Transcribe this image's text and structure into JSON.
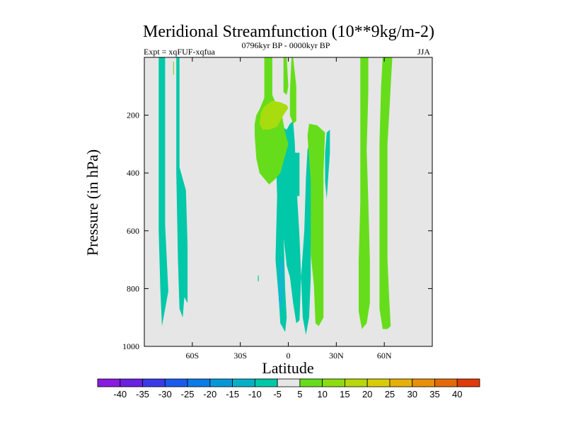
{
  "chart_data": {
    "type": "heatmap",
    "title": "Meridional Streamfunction (10**9kg/m-2)",
    "subtitle_left": "Expt = xqFUF-xqfua",
    "subtitle_center": "0796kyr BP - 0000kyr BP",
    "subtitle_right": "JJA",
    "xlabel": "Latitude",
    "ylabel": "Pressure (in hPa)",
    "xlim": [
      -90,
      90
    ],
    "ylim": [
      1000,
      0
    ],
    "x_ticks": [
      {
        "value": -60,
        "label": "60S"
      },
      {
        "value": -30,
        "label": "30S"
      },
      {
        "value": 0,
        "label": "0"
      },
      {
        "value": 30,
        "label": "30N"
      },
      {
        "value": 60,
        "label": "60N"
      }
    ],
    "y_ticks": [
      {
        "value": 200,
        "label": "200"
      },
      {
        "value": 400,
        "label": "400"
      },
      {
        "value": 600,
        "label": "600"
      },
      {
        "value": 800,
        "label": "800"
      },
      {
        "value": 1000,
        "label": "1000"
      }
    ],
    "background_color": "#e6e6e6",
    "regions": [
      {
        "level": -7.5,
        "color": "#00c8a8",
        "points": [
          [
            -81,
            0
          ],
          [
            -77,
            0
          ],
          [
            -77,
            580
          ],
          [
            -75,
            810
          ],
          [
            -77,
            870
          ],
          [
            -79,
            930
          ],
          [
            -80,
            800
          ],
          [
            -81,
            600
          ]
        ]
      },
      {
        "level": -7.5,
        "color": "#00c8a8",
        "points": [
          [
            -70,
            0
          ],
          [
            -68,
            0
          ],
          [
            -68,
            380
          ],
          [
            -64,
            460
          ],
          [
            -63,
            650
          ],
          [
            -63,
            850
          ],
          [
            -65,
            830
          ],
          [
            -66,
            900
          ],
          [
            -68,
            870
          ],
          [
            -69,
            700
          ],
          [
            -70,
            400
          ]
        ]
      },
      {
        "level": -7.5,
        "color": "#00c8a8",
        "points": [
          [
            -8,
            290
          ],
          [
            -6,
            380
          ],
          [
            -3,
            620
          ],
          [
            -1,
            720
          ],
          [
            1,
            760
          ],
          [
            3,
            850
          ],
          [
            5,
            920
          ],
          [
            7,
            910
          ],
          [
            8,
            760
          ],
          [
            7,
            620
          ],
          [
            5,
            430
          ],
          [
            4,
            290
          ],
          [
            3,
            220
          ],
          [
            1,
            230
          ],
          [
            -1,
            250
          ],
          [
            -4,
            240
          ],
          [
            -6,
            260
          ]
        ]
      },
      {
        "level": -7.5,
        "color": "#00c8a8",
        "points": [
          [
            -8,
            300
          ],
          [
            -7,
            480
          ],
          [
            -8,
            700
          ],
          [
            -6,
            830
          ],
          [
            -5,
            920
          ],
          [
            -2,
            950
          ],
          [
            -1,
            900
          ],
          [
            -2,
            800
          ],
          [
            -3,
            600
          ],
          [
            -5,
            400
          ],
          [
            -6,
            310
          ]
        ]
      },
      {
        "level": -12.5,
        "color": "#10b8d0",
        "points": [
          [
            -5,
            680
          ],
          [
            -3,
            720
          ],
          [
            -3,
            800
          ],
          [
            -4,
            880
          ],
          [
            -6,
            840
          ],
          [
            -6,
            740
          ]
        ]
      },
      {
        "level": -7.5,
        "color": "#00c8a8",
        "points": [
          [
            4,
            330
          ],
          [
            7,
            330
          ],
          [
            7,
            480
          ],
          [
            5,
            480
          ]
        ]
      },
      {
        "level": -7.5,
        "color": "#00c8a8",
        "points": [
          [
            12,
            320
          ],
          [
            14,
            280
          ],
          [
            15,
            410
          ],
          [
            14,
            670
          ],
          [
            14,
            760
          ],
          [
            13,
            900
          ],
          [
            11,
            960
          ],
          [
            9,
            900
          ],
          [
            8,
            760
          ],
          [
            10,
            600
          ],
          [
            11,
            420
          ]
        ]
      },
      {
        "level": -7.5,
        "color": "#00c8a8",
        "points": [
          [
            24,
            260
          ],
          [
            26,
            250
          ],
          [
            26,
            330
          ],
          [
            25,
            410
          ],
          [
            24,
            490
          ],
          [
            23,
            430
          ],
          [
            23,
            330
          ]
        ]
      },
      {
        "level": 7.5,
        "color": "#66dd1a",
        "points": [
          [
            -15,
            0
          ],
          [
            -10,
            0
          ],
          [
            -10,
            130
          ],
          [
            -7,
            170
          ],
          [
            -4,
            200
          ],
          [
            -2,
            260
          ],
          [
            0,
            300
          ],
          [
            -2,
            340
          ],
          [
            -5,
            400
          ],
          [
            -8,
            420
          ],
          [
            -10,
            430
          ],
          [
            -12,
            440
          ],
          [
            -15,
            420
          ],
          [
            -18,
            400
          ],
          [
            -20,
            350
          ],
          [
            -21,
            270
          ],
          [
            -21,
            230
          ],
          [
            -20,
            200
          ],
          [
            -18,
            180
          ],
          [
            -15,
            140
          ]
        ]
      },
      {
        "level": 12.5,
        "color": "#a8dc0e",
        "points": [
          [
            -15,
            170
          ],
          [
            -10,
            150
          ],
          [
            -5,
            155
          ],
          [
            -1,
            165
          ],
          [
            0,
            175
          ],
          [
            -3,
            200
          ],
          [
            -7,
            240
          ],
          [
            -12,
            250
          ],
          [
            -16,
            250
          ],
          [
            -18,
            230
          ],
          [
            -17,
            190
          ]
        ]
      },
      {
        "level": 7.5,
        "color": "#66dd1a",
        "points": [
          [
            -3,
            0
          ],
          [
            -1,
            0
          ],
          [
            0,
            100
          ],
          [
            -1,
            130
          ],
          [
            -3,
            120
          ],
          [
            -3,
            60
          ]
        ]
      },
      {
        "level": 7.5,
        "color": "#66dd1a",
        "points": [
          [
            2,
            0
          ],
          [
            3,
            0
          ],
          [
            5,
            100
          ],
          [
            5,
            170
          ],
          [
            5,
            220
          ],
          [
            3,
            230
          ],
          [
            1,
            200
          ],
          [
            1,
            120
          ]
        ]
      },
      {
        "level": 7.5,
        "color": "#66dd1a",
        "points": [
          [
            13,
            230
          ],
          [
            18,
            235
          ],
          [
            23,
            260
          ],
          [
            22,
            400
          ],
          [
            22,
            580
          ],
          [
            22,
            760
          ],
          [
            22,
            900
          ],
          [
            19,
            930
          ],
          [
            17,
            920
          ],
          [
            16,
            790
          ],
          [
            14,
            680
          ],
          [
            14,
            430
          ],
          [
            12,
            270
          ]
        ]
      },
      {
        "level": 7.5,
        "color": "#66dd1a",
        "points": [
          [
            45,
            0
          ],
          [
            50,
            0
          ],
          [
            50,
            120
          ],
          [
            49,
            320
          ],
          [
            50,
            500
          ],
          [
            51,
            700
          ],
          [
            51,
            850
          ],
          [
            49,
            920
          ],
          [
            46,
            940
          ],
          [
            44,
            880
          ],
          [
            44,
            700
          ],
          [
            45,
            500
          ],
          [
            45,
            300
          ],
          [
            45,
            120
          ]
        ]
      },
      {
        "level": 7.5,
        "color": "#66dd1a",
        "points": [
          [
            59,
            0
          ],
          [
            65,
            0
          ],
          [
            64,
            100
          ],
          [
            63,
            200
          ],
          [
            62,
            300
          ],
          [
            62,
            500
          ],
          [
            62,
            700
          ],
          [
            63,
            830
          ],
          [
            64,
            930
          ],
          [
            62,
            940
          ],
          [
            59,
            940
          ],
          [
            57,
            870
          ],
          [
            57,
            700
          ],
          [
            57,
            500
          ],
          [
            57,
            300
          ],
          [
            58,
            100
          ]
        ]
      },
      {
        "level": 7.5,
        "color": "#66dd1a",
        "points": [
          [
            -72,
            15
          ],
          [
            -71.5,
            15
          ],
          [
            -71.5,
            60
          ],
          [
            -72,
            60
          ]
        ]
      },
      {
        "level": -7.5,
        "color": "#00c8a8",
        "points": [
          [
            -19,
            755
          ],
          [
            -18.5,
            755
          ],
          [
            -18.5,
            775
          ],
          [
            -19,
            775
          ]
        ]
      }
    ],
    "colorbar": {
      "levels": [
        "-40",
        "-35",
        "-30",
        "-25",
        "-20",
        "-15",
        "-10",
        "-5",
        "5",
        "10",
        "15",
        "20",
        "25",
        "30",
        "35",
        "40"
      ],
      "colors": [
        "#8a1ae0",
        "#6a22e0",
        "#3a3ae8",
        "#1a5af0",
        "#0a7ce8",
        "#0598d8",
        "#04b0c8",
        "#00c8a8",
        "#e6e6e6",
        "#66dd1a",
        "#8edc0e",
        "#b8d80a",
        "#d8cc08",
        "#e6b008",
        "#e89008",
        "#e46a08",
        "#e03a08"
      ]
    }
  }
}
